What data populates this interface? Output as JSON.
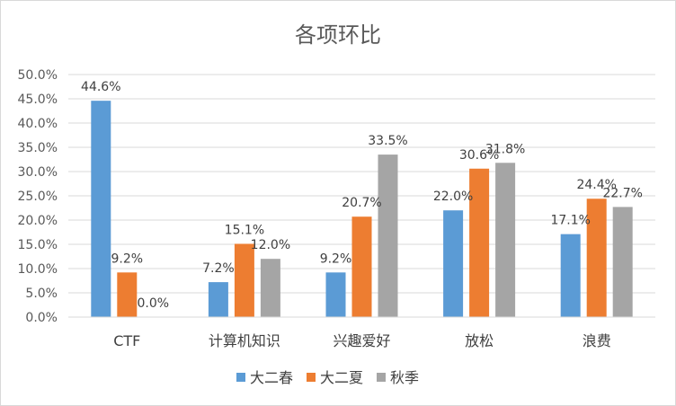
{
  "chart_data": {
    "type": "bar",
    "title": "各项环比",
    "categories": [
      "CTF",
      "计算机知识",
      "兴趣爱好",
      "放松",
      "浪费"
    ],
    "series": [
      {
        "name": "大二春",
        "color": "#5b9bd5",
        "values": [
          44.6,
          7.2,
          9.2,
          22.0,
          17.1
        ],
        "labels": [
          "44.6%",
          "7.2%",
          "9.2%",
          "22.0%",
          "17.1%"
        ]
      },
      {
        "name": "大二夏",
        "color": "#ed7d31",
        "values": [
          9.2,
          15.1,
          20.7,
          30.6,
          24.4
        ],
        "labels": [
          "9.2%",
          "15.1%",
          "20.7%",
          "30.6%",
          "24.4%"
        ]
      },
      {
        "name": "秋季",
        "color": "#a5a5a5",
        "values": [
          0.0,
          12.0,
          33.5,
          31.8,
          22.7
        ],
        "labels": [
          "0.0%",
          "12.0%",
          "33.5%",
          "31.8%",
          "22.7%"
        ]
      }
    ],
    "ylim": [
      0,
      50
    ],
    "yticks": [
      "0.0%",
      "5.0%",
      "10.0%",
      "15.0%",
      "20.0%",
      "25.0%",
      "30.0%",
      "35.0%",
      "40.0%",
      "45.0%",
      "50.0%"
    ],
    "grid": true,
    "legend_position": "bottom"
  }
}
